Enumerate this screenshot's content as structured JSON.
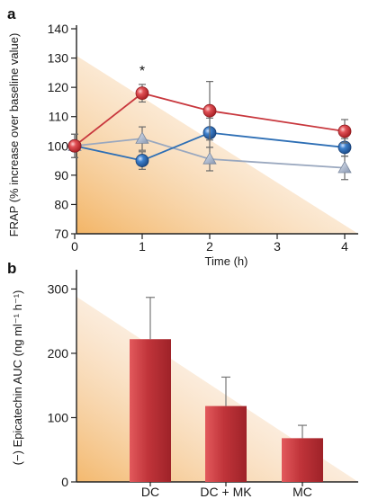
{
  "chart_data": [
    {
      "panel_label": "a",
      "type": "line",
      "ylabel": "FRAP (% increase over baseline value)",
      "xlabel": "Time (h)",
      "xlim": [
        0,
        4
      ],
      "ylim": [
        70,
        140
      ],
      "xticks": [
        "0",
        "1",
        "2",
        "3",
        "4"
      ],
      "yticks": [
        "70",
        "80",
        "90",
        "100",
        "110",
        "120",
        "130",
        "140"
      ],
      "series": [
        {
          "color": "#c8373d",
          "marker": "circle",
          "x": [
            0,
            1,
            2,
            4
          ],
          "y": [
            100,
            118,
            112,
            105
          ],
          "err": [
            0,
            3,
            10,
            4
          ]
        },
        {
          "color": "#2e6fb5",
          "marker": "circle",
          "x": [
            0,
            1,
            2,
            4
          ],
          "y": [
            100,
            95,
            104.5,
            99.5
          ],
          "err": [
            4,
            3,
            5,
            3
          ]
        },
        {
          "color": "#9aa8bf",
          "marker": "triangle",
          "x": [
            0,
            1,
            2,
            4
          ],
          "y": [
            100,
            102.5,
            95.5,
            92.5
          ],
          "err": [
            4,
            4,
            4,
            4
          ]
        }
      ],
      "annotations": [
        {
          "text": "*",
          "x": 1
        }
      ]
    },
    {
      "panel_label": "b",
      "type": "bar",
      "ylabel": "(−) Epicatechin AUC (ng ml⁻¹ h⁻¹)",
      "categories": [
        "DC",
        "DC + MK",
        "MC"
      ],
      "values": [
        222,
        118,
        68
      ],
      "errors": [
        65,
        45,
        20
      ],
      "ylim": [
        0,
        330
      ],
      "yticks": [
        "0",
        "100",
        "200",
        "300"
      ],
      "bar_color": "#c0343a"
    }
  ],
  "colors": {
    "background_gradient": "#f2b15e",
    "axis": "#222222"
  }
}
